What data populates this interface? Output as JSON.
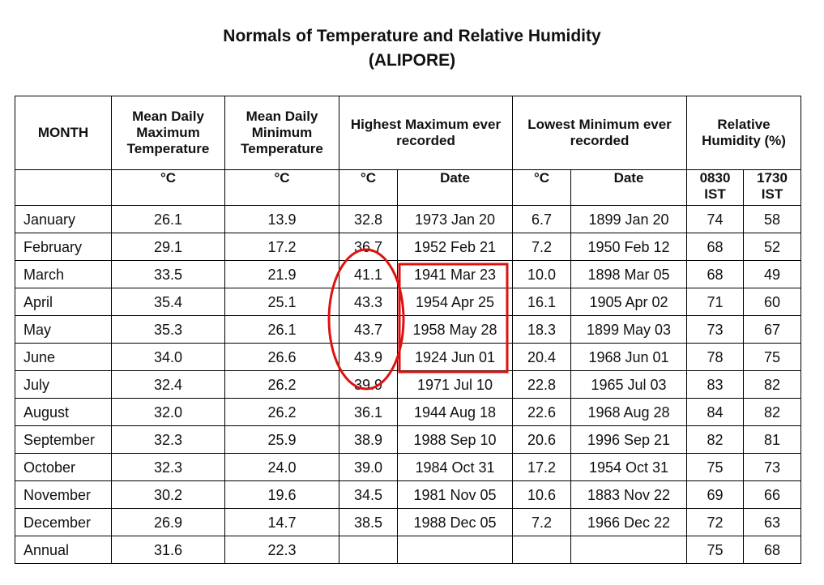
{
  "header": {
    "title": "Normals of Temperature and Relative Humidity",
    "subtitle": "(ALIPORE)"
  },
  "table": {
    "header": [
      "MONTH",
      "Mean Daily Maximum Temperature",
      "Mean Daily Minimum Temperature",
      "Highest Maximum ever recorded",
      "Lowest Minimum ever recorded",
      "Relative Humidity (%)"
    ],
    "subheader": [
      null,
      "°C",
      "°C",
      "°C",
      "Date",
      "°C",
      "Date",
      "0830 IST",
      "1730 IST"
    ],
    "rows": [
      [
        "January",
        "26.1",
        "13.9",
        "32.8",
        "1973 Jan 20",
        "6.7",
        "1899 Jan 20",
        "74",
        "58"
      ],
      [
        "February",
        "29.1",
        "17.2",
        "36.7",
        "1952 Feb 21",
        "7.2",
        "1950 Feb 12",
        "68",
        "52"
      ],
      [
        "March",
        "33.5",
        "21.9",
        "41.1",
        "1941 Mar 23",
        "10.0",
        "1898 Mar 05",
        "68",
        "49"
      ],
      [
        "April",
        "35.4",
        "25.1",
        "43.3",
        "1954 Apr 25",
        "16.1",
        "1905 Apr 02",
        "71",
        "60"
      ],
      [
        "May",
        "35.3",
        "26.1",
        "43.7",
        "1958 May 28",
        "18.3",
        "1899 May 03",
        "73",
        "67"
      ],
      [
        "June",
        "34.0",
        "26.6",
        "43.9",
        "1924 Jun 01",
        "20.4",
        "1968 Jun 01",
        "78",
        "75"
      ],
      [
        "July",
        "32.4",
        "26.2",
        "39.9",
        "1971 Jul 10",
        "22.8",
        "1965 Jul 03",
        "83",
        "82"
      ],
      [
        "August",
        "32.0",
        "26.2",
        "36.1",
        "1944 Aug 18",
        "22.6",
        "1968 Aug 28",
        "84",
        "82"
      ],
      [
        "September",
        "32.3",
        "25.9",
        "38.9",
        "1988 Sep 10",
        "20.6",
        "1996 Sep 21",
        "82",
        "81"
      ],
      [
        "October",
        "32.3",
        "24.0",
        "39.0",
        "1984 Oct 31",
        "17.2",
        "1954 Oct 31",
        "75",
        "73"
      ],
      [
        "November",
        "30.2",
        "19.6",
        "34.5",
        "1981 Nov 05",
        "10.6",
        "1883 Nov 22",
        "69",
        "66"
      ],
      [
        "December",
        "26.9",
        "14.7",
        "38.5",
        "1988 Dec 05",
        "7.2",
        "1966 Dec 22",
        "72",
        "63"
      ],
      [
        "Annual",
        "31.6",
        "22.3",
        null,
        null,
        null,
        null,
        "75",
        "68"
      ]
    ]
  }
}
